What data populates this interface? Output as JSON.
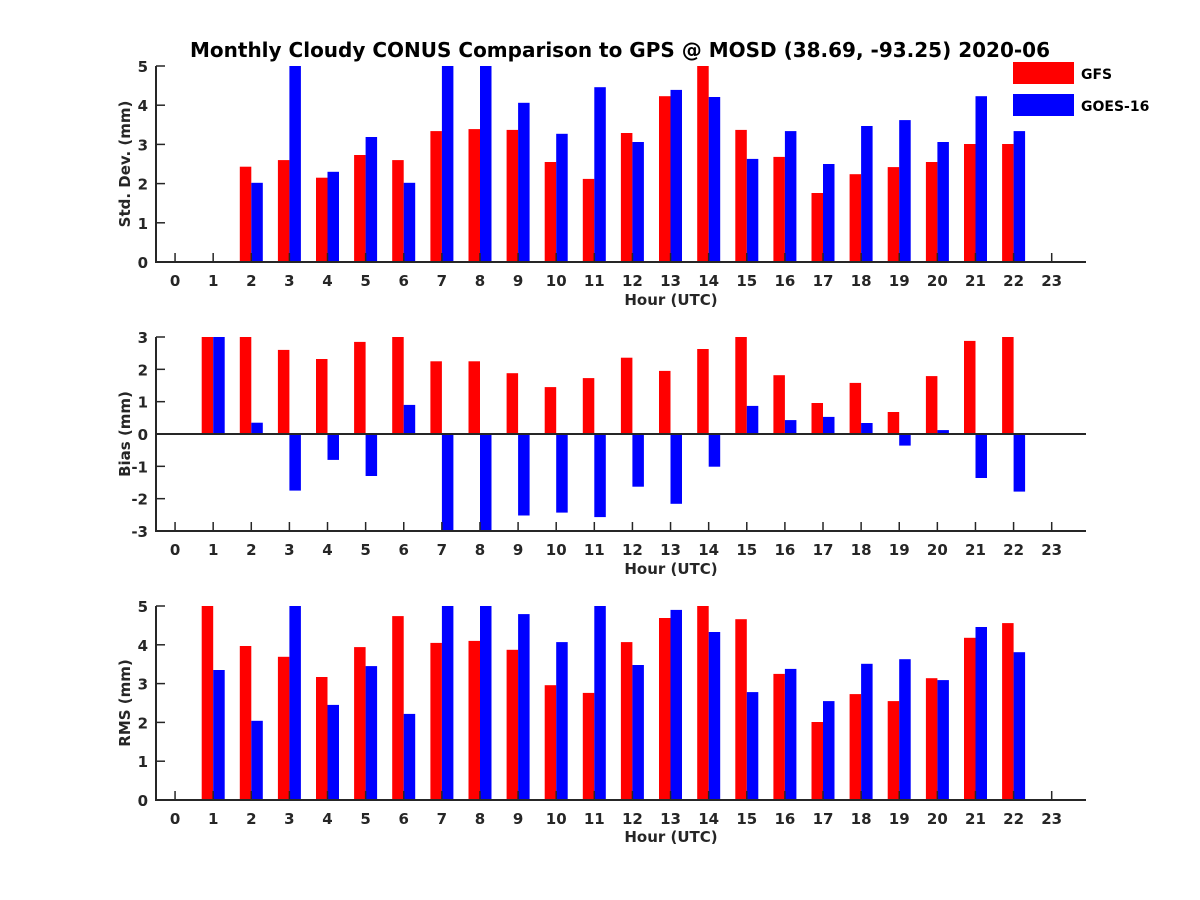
{
  "chart_data": {
    "title": "Monthly Cloudy CONUS Comparison to GPS @ MOSD (38.69, -93.25) 2020-06",
    "legend": {
      "placement": "top-right",
      "entries": [
        {
          "name": "GFS",
          "color": "#ff0000"
        },
        {
          "name": "GOES-16",
          "color": "#0000ff"
        }
      ]
    },
    "categories": [
      0,
      1,
      2,
      3,
      4,
      5,
      6,
      7,
      8,
      9,
      10,
      11,
      12,
      13,
      14,
      15,
      16,
      17,
      18,
      19,
      20,
      21,
      22,
      23
    ],
    "panels": [
      {
        "type": "bar",
        "ylabel": "Std. Dev. (mm)",
        "xlabel": "Hour (UTC)",
        "ylim": [
          0,
          5
        ],
        "yticks": [
          0,
          1,
          2,
          3,
          4,
          5
        ],
        "xlim": [
          -0.5,
          23.9
        ],
        "grid": false,
        "series": [
          {
            "name": "GFS",
            "color": "#ff0000",
            "values": [
              null,
              null,
              2.43,
              2.6,
              2.15,
              2.73,
              2.6,
              3.34,
              3.39,
              3.37,
              2.55,
              2.12,
              3.29,
              4.23,
              5.0,
              3.37,
              2.68,
              1.76,
              2.24,
              2.42,
              2.55,
              3.01,
              3.01,
              null
            ]
          },
          {
            "name": "GOES-16",
            "color": "#0000ff",
            "values": [
              null,
              null,
              2.02,
              5.0,
              2.3,
              3.19,
              2.02,
              5.0,
              5.0,
              4.06,
              3.27,
              4.46,
              3.06,
              4.39,
              4.21,
              2.63,
              3.34,
              2.5,
              3.47,
              3.62,
              3.06,
              4.23,
              3.34,
              null
            ]
          }
        ]
      },
      {
        "type": "bar",
        "ylabel": "Bias (mm)",
        "xlabel": "Hour (UTC)",
        "ylim": [
          -3,
          3
        ],
        "yticks": [
          -3,
          -2,
          -1,
          0,
          1,
          2,
          3
        ],
        "xlim": [
          -0.5,
          23.9
        ],
        "grid": false,
        "zero_line": true,
        "series": [
          {
            "name": "GFS",
            "color": "#ff0000",
            "values": [
              null,
              3.0,
              3.0,
              2.6,
              2.32,
              2.85,
              3.0,
              2.25,
              2.25,
              1.88,
              1.45,
              1.73,
              2.36,
              1.95,
              2.63,
              3.0,
              1.82,
              0.96,
              1.58,
              0.68,
              1.79,
              2.88,
              3.0,
              null
            ]
          },
          {
            "name": "GOES-16",
            "color": "#0000ff",
            "values": [
              null,
              3.0,
              0.35,
              -1.75,
              -0.8,
              -1.3,
              0.9,
              -3.0,
              -3.0,
              -2.52,
              -2.43,
              -2.57,
              -1.63,
              -2.16,
              -1.01,
              0.87,
              0.43,
              0.53,
              0.34,
              -0.36,
              0.12,
              -1.36,
              -1.78,
              null
            ]
          }
        ]
      },
      {
        "type": "bar",
        "ylabel": "RMS (mm)",
        "xlabel": "Hour (UTC)",
        "ylim": [
          0,
          5
        ],
        "yticks": [
          0,
          1,
          2,
          3,
          4,
          5
        ],
        "xlim": [
          -0.5,
          23.9
        ],
        "grid": false,
        "series": [
          {
            "name": "GFS",
            "color": "#ff0000",
            "values": [
              null,
              5.0,
              3.97,
              3.69,
              3.17,
              3.94,
              4.74,
              4.05,
              4.1,
              3.87,
              2.96,
              2.76,
              4.07,
              4.69,
              5.0,
              4.66,
              3.25,
              2.01,
              2.73,
              2.55,
              3.14,
              4.18,
              4.56,
              null
            ]
          },
          {
            "name": "GOES-16",
            "color": "#0000ff",
            "values": [
              null,
              3.35,
              2.04,
              5.0,
              2.45,
              3.45,
              2.22,
              5.0,
              5.0,
              4.79,
              4.07,
              5.0,
              3.48,
              4.9,
              4.33,
              2.78,
              3.38,
              2.55,
              3.51,
              3.63,
              3.09,
              4.46,
              3.81,
              null
            ]
          }
        ]
      }
    ]
  }
}
